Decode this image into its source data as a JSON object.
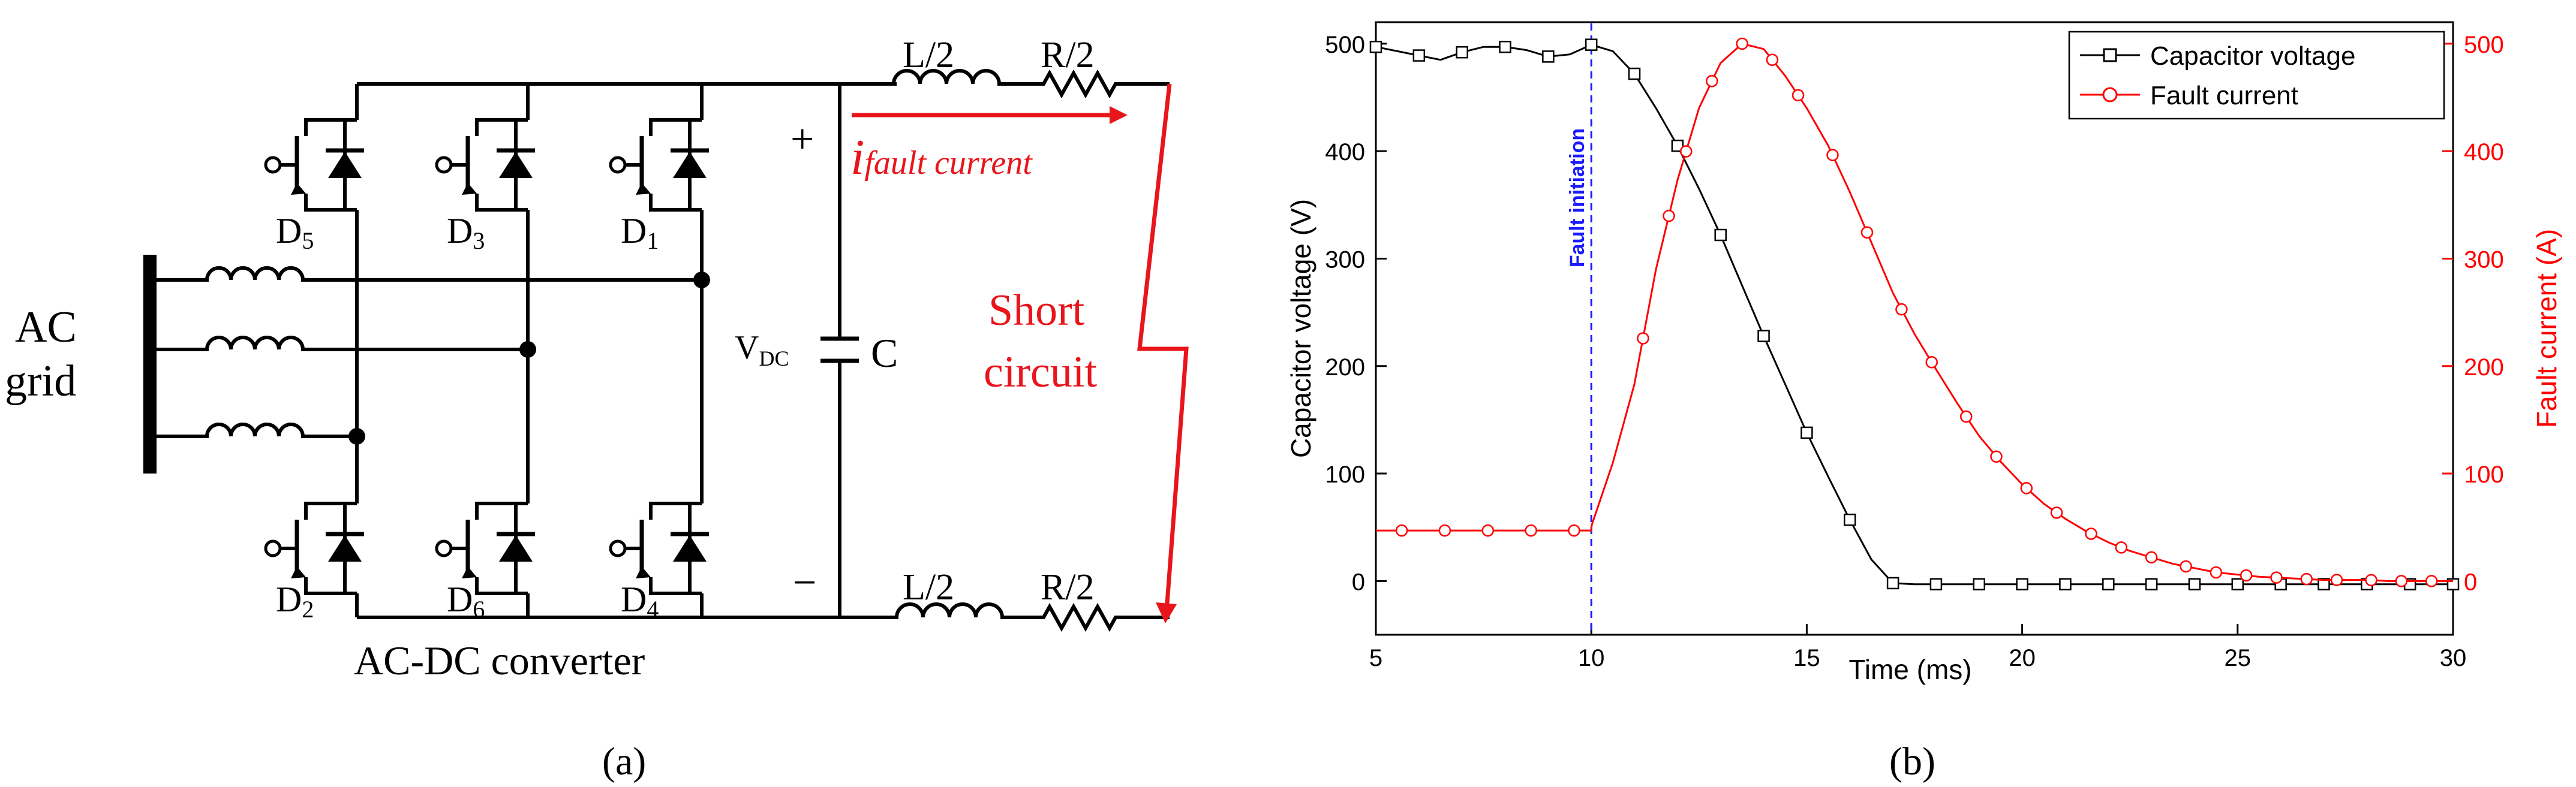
{
  "panels": {
    "a": {
      "label": "(a)"
    },
    "b": {
      "label": "(b)"
    }
  },
  "circuit": {
    "grid_label_line1": "AC",
    "grid_label_line2": "grid",
    "converter_label": "AC-DC converter",
    "diodes": [
      "D5",
      "D3",
      "D1",
      "D2",
      "D6",
      "D4"
    ],
    "capacitor_label": "C",
    "vdc_main": "V",
    "vdc_sub": "DC",
    "plus_sign": "+",
    "minus_sign": "−",
    "inductor_label": "L/2",
    "resistor_label": "R/2",
    "current_label_main": "i",
    "current_label_sub": "fault current",
    "short_circuit_line1": "Short",
    "short_circuit_line2": "circuit",
    "colors": {
      "wire": "#000000",
      "fault": "#e8151b"
    }
  },
  "chart_data": {
    "type": "line",
    "title": "",
    "xlabel": "Time (ms)",
    "ylabel_left": "Capacitor voltage (V)",
    "ylabel_right": "Fault current (A)",
    "xlim": [
      5,
      30
    ],
    "ylim_left": [
      -50,
      520
    ],
    "ylim_right": [
      -50,
      520
    ],
    "xticks": [
      5,
      10,
      15,
      20,
      25,
      30
    ],
    "yticks_left": [
      0,
      100,
      200,
      300,
      400,
      500
    ],
    "yticks_right": [
      0,
      100,
      200,
      300,
      400,
      500
    ],
    "grid": false,
    "legend_position": "top-right",
    "annotation": {
      "text": "Fault initiation",
      "x": 10,
      "color": "#1a1aff"
    },
    "series": [
      {
        "name": "Capacitor voltage",
        "axis": "left",
        "color": "#000000",
        "marker": "square",
        "x": [
          5,
          5.5,
          6,
          6.5,
          7,
          7.5,
          8,
          8.5,
          9,
          9.5,
          10,
          10.5,
          11,
          11.5,
          12,
          12.5,
          13,
          13.5,
          14,
          14.5,
          15,
          15.5,
          16,
          16.5,
          17,
          17.5,
          18,
          18.5,
          19,
          20,
          21,
          22,
          23,
          24,
          25,
          26,
          27,
          28,
          29,
          30
        ],
        "y": [
          497,
          493,
          489,
          485,
          492,
          497,
          497,
          494,
          488,
          490,
          499,
          493,
          472,
          440,
          405,
          365,
          322,
          275,
          228,
          183,
          138,
          97,
          57,
          20,
          -2,
          -3,
          -3,
          -3,
          -3,
          -3,
          -3,
          -3,
          -3,
          -3,
          -3,
          -3,
          -3,
          -3,
          -3,
          -3
        ],
        "marker_x": [
          5,
          6,
          7,
          8,
          9,
          10,
          11,
          12,
          13,
          14,
          15,
          16,
          17,
          18,
          19,
          20,
          21,
          22,
          23,
          24,
          25,
          26,
          27,
          28,
          29,
          30
        ]
      },
      {
        "name": "Fault current",
        "axis": "right",
        "color": "#ff0000",
        "marker": "circle",
        "x": [
          5,
          6,
          7,
          8,
          9,
          10,
          10.01,
          10.5,
          11,
          11.5,
          12,
          12.5,
          13,
          13.5,
          14,
          14.5,
          15,
          15.5,
          16,
          16.5,
          17,
          17.5,
          18,
          18.5,
          19,
          19.5,
          20,
          20.5,
          21,
          21.5,
          22,
          22.5,
          23,
          23.5,
          24,
          24.5,
          25,
          25.5,
          26,
          26.5,
          27,
          27.5,
          28,
          28.5,
          29,
          29.5,
          30
        ],
        "y": [
          47,
          47,
          47,
          47,
          47,
          47,
          52,
          110,
          183,
          290,
          373,
          440,
          482,
          500,
          495,
          470,
          440,
          405,
          362,
          315,
          268,
          230,
          197,
          165,
          135,
          111,
          90,
          72,
          58,
          46,
          36,
          28,
          22,
          16,
          12,
          8,
          6,
          4,
          3,
          2,
          1,
          1,
          1,
          0,
          0,
          0,
          0
        ],
        "marker_x": [
          5.6,
          6.6,
          7.6,
          8.6,
          9.6,
          11.2,
          11.8,
          12.2,
          12.8,
          13.5,
          14.2,
          14.8,
          15.6,
          16.4,
          17.2,
          17.9,
          18.7,
          19.4,
          20.1,
          20.8,
          21.6,
          22.3,
          23,
          23.8,
          24.5,
          25.2,
          25.9,
          26.6,
          27.3,
          28.1,
          28.8,
          29.5
        ]
      }
    ]
  }
}
